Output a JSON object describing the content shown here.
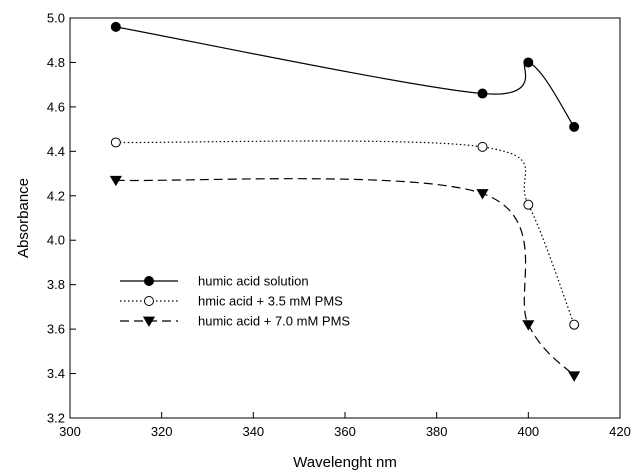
{
  "chart_data": {
    "type": "line",
    "xlabel": "Wavelenght nm",
    "ylabel": "Absorbance",
    "xlim": [
      300,
      420
    ],
    "ylim": [
      3.2,
      5.0
    ],
    "xticks": [
      300,
      320,
      340,
      360,
      380,
      400,
      420
    ],
    "yticks": [
      3.2,
      3.4,
      3.6,
      3.8,
      4.0,
      4.2,
      4.4,
      4.6,
      4.8,
      5.0
    ],
    "grid": false,
    "legend_position": "bottom-left",
    "x": [
      310,
      390,
      400,
      410
    ],
    "series": [
      {
        "name": "humic acid solution",
        "values": [
          4.96,
          4.66,
          4.8,
          4.51
        ],
        "marker": "filled-circle",
        "line_style": "solid"
      },
      {
        "name": "hmic acid + 3.5 mM PMS",
        "values": [
          4.44,
          4.42,
          4.16,
          3.62
        ],
        "marker": "open-circle",
        "line_style": "dotted"
      },
      {
        "name": "humic acid + 7.0 mM PMS",
        "values": [
          4.27,
          4.21,
          3.62,
          3.39
        ],
        "marker": "filled-triangle-down",
        "line_style": "dashed"
      }
    ]
  }
}
